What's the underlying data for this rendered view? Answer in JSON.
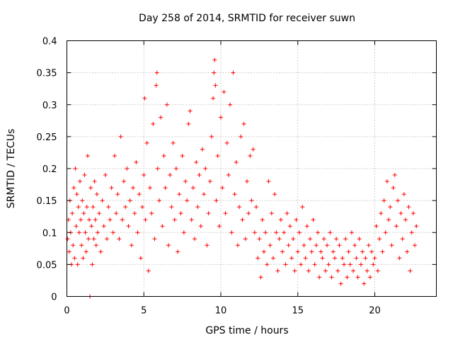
{
  "chart_data": {
    "type": "scatter",
    "title": "Day 258 of 2014, SRMTID for receiver suwn",
    "xlabel": "GPS time / hours",
    "ylabel": "SRMTID / TECUs",
    "xlim": [
      0,
      24
    ],
    "ylim": [
      0,
      0.4
    ],
    "x_ticks": [
      0,
      5,
      10,
      15,
      20
    ],
    "x_tick_labels": [
      "0",
      "5",
      "10",
      "15",
      "20"
    ],
    "y_ticks": [
      0,
      0.05,
      0.1,
      0.15,
      0.2,
      0.25,
      0.3,
      0.35,
      0.4
    ],
    "y_tick_labels": [
      "0",
      "0.05",
      "0.1",
      "0.15",
      "0.2",
      "0.25",
      "0.3",
      "0.35",
      "0.4"
    ],
    "grid": true,
    "marker": "+",
    "color": "#ff0000",
    "series": [
      {
        "name": "SRMTID",
        "points": [
          [
            0.05,
            0.09
          ],
          [
            0.1,
            0.12
          ],
          [
            0.15,
            0.07
          ],
          [
            0.2,
            0.15
          ],
          [
            0.25,
            0.1
          ],
          [
            0.3,
            0.05
          ],
          [
            0.35,
            0.13
          ],
          [
            0.4,
            0.08
          ],
          [
            0.45,
            0.17
          ],
          [
            0.5,
            0.06
          ],
          [
            0.55,
            0.2
          ],
          [
            0.6,
            0.11
          ],
          [
            0.65,
            0.16
          ],
          [
            0.7,
            0.05
          ],
          [
            0.75,
            0.14
          ],
          [
            0.8,
            0.1
          ],
          [
            0.85,
            0.18
          ],
          [
            0.9,
            0.12
          ],
          [
            0.95,
            0.08
          ],
          [
            1.0,
            0.15
          ],
          [
            1.05,
            0.06
          ],
          [
            1.1,
            0.13
          ],
          [
            1.15,
            0.19
          ],
          [
            1.2,
            0.1
          ],
          [
            1.25,
            0.07
          ],
          [
            1.3,
            0.14
          ],
          [
            1.35,
            0.22
          ],
          [
            1.4,
            0.09
          ],
          [
            1.45,
            0.12
          ],
          [
            1.5,
            0.0
          ],
          [
            1.55,
            0.17
          ],
          [
            1.6,
            0.11
          ],
          [
            1.65,
            0.05
          ],
          [
            1.7,
            0.14
          ],
          [
            1.75,
            0.09
          ],
          [
            1.8,
            0.18
          ],
          [
            1.85,
            0.12
          ],
          [
            1.9,
            0.08
          ],
          [
            1.95,
            0.16
          ],
          [
            2.0,
            0.1
          ],
          [
            2.1,
            0.13
          ],
          [
            2.2,
            0.07
          ],
          [
            2.3,
            0.15
          ],
          [
            2.4,
            0.11
          ],
          [
            2.5,
            0.19
          ],
          [
            2.6,
            0.09
          ],
          [
            2.7,
            0.14
          ],
          [
            2.8,
            0.12
          ],
          [
            2.9,
            0.17
          ],
          [
            3.0,
            0.1
          ],
          [
            3.1,
            0.22
          ],
          [
            3.2,
            0.13
          ],
          [
            3.3,
            0.16
          ],
          [
            3.4,
            0.09
          ],
          [
            3.5,
            0.25
          ],
          [
            3.6,
            0.12
          ],
          [
            3.7,
            0.18
          ],
          [
            3.8,
            0.14
          ],
          [
            3.9,
            0.2
          ],
          [
            4.0,
            0.11
          ],
          [
            4.1,
            0.15
          ],
          [
            4.2,
            0.08
          ],
          [
            4.3,
            0.17
          ],
          [
            4.4,
            0.13
          ],
          [
            4.5,
            0.21
          ],
          [
            4.6,
            0.1
          ],
          [
            4.7,
            0.16
          ],
          [
            4.8,
            0.06
          ],
          [
            4.9,
            0.14
          ],
          [
            5.0,
            0.19
          ],
          [
            5.05,
            0.31
          ],
          [
            5.1,
            0.12
          ],
          [
            5.2,
            0.24
          ],
          [
            5.3,
            0.04
          ],
          [
            5.4,
            0.17
          ],
          [
            5.5,
            0.13
          ],
          [
            5.6,
            0.27
          ],
          [
            5.7,
            0.09
          ],
          [
            5.8,
            0.33
          ],
          [
            5.85,
            0.35
          ],
          [
            5.9,
            0.2
          ],
          [
            6.0,
            0.15
          ],
          [
            6.1,
            0.28
          ],
          [
            6.2,
            0.11
          ],
          [
            6.3,
            0.22
          ],
          [
            6.4,
            0.17
          ],
          [
            6.5,
            0.3
          ],
          [
            6.6,
            0.08
          ],
          [
            6.7,
            0.19
          ],
          [
            6.8,
            0.14
          ],
          [
            6.9,
            0.24
          ],
          [
            7.0,
            0.12
          ],
          [
            7.1,
            0.2
          ],
          [
            7.2,
            0.07
          ],
          [
            7.3,
            0.16
          ],
          [
            7.4,
            0.13
          ],
          [
            7.5,
            0.22
          ],
          [
            7.6,
            0.1
          ],
          [
            7.7,
            0.18
          ],
          [
            7.8,
            0.15
          ],
          [
            7.9,
            0.27
          ],
          [
            8.0,
            0.29
          ],
          [
            8.1,
            0.12
          ],
          [
            8.2,
            0.17
          ],
          [
            8.3,
            0.09
          ],
          [
            8.4,
            0.21
          ],
          [
            8.5,
            0.14
          ],
          [
            8.6,
            0.19
          ],
          [
            8.7,
            0.11
          ],
          [
            8.8,
            0.23
          ],
          [
            8.9,
            0.16
          ],
          [
            9.0,
            0.2
          ],
          [
            9.1,
            0.08
          ],
          [
            9.2,
            0.13
          ],
          [
            9.3,
            0.18
          ],
          [
            9.4,
            0.25
          ],
          [
            9.5,
            0.31
          ],
          [
            9.55,
            0.35
          ],
          [
            9.6,
            0.37
          ],
          [
            9.65,
            0.33
          ],
          [
            9.7,
            0.15
          ],
          [
            9.8,
            0.22
          ],
          [
            9.9,
            0.11
          ],
          [
            10.0,
            0.28
          ],
          [
            10.1,
            0.17
          ],
          [
            10.2,
            0.32
          ],
          [
            10.3,
            0.13
          ],
          [
            10.4,
            0.24
          ],
          [
            10.5,
            0.19
          ],
          [
            10.6,
            0.3
          ],
          [
            10.7,
            0.1
          ],
          [
            10.8,
            0.35
          ],
          [
            10.9,
            0.16
          ],
          [
            11.0,
            0.21
          ],
          [
            11.1,
            0.08
          ],
          [
            11.2,
            0.14
          ],
          [
            11.3,
            0.25
          ],
          [
            11.4,
            0.12
          ],
          [
            11.5,
            0.27
          ],
          [
            11.6,
            0.09
          ],
          [
            11.7,
            0.18
          ],
          [
            11.8,
            0.13
          ],
          [
            11.9,
            0.22
          ],
          [
            12.0,
            0.15
          ],
          [
            12.1,
            0.23
          ],
          [
            12.2,
            0.1
          ],
          [
            12.3,
            0.14
          ],
          [
            12.4,
            0.06
          ],
          [
            12.5,
            0.09
          ],
          [
            12.6,
            0.03
          ],
          [
            12.7,
            0.12
          ],
          [
            12.8,
            0.07
          ],
          [
            12.9,
            0.1
          ],
          [
            13.0,
            0.05
          ],
          [
            13.1,
            0.18
          ],
          [
            13.2,
            0.08
          ],
          [
            13.3,
            0.13
          ],
          [
            13.4,
            0.06
          ],
          [
            13.5,
            0.16
          ],
          [
            13.6,
            0.1
          ],
          [
            13.7,
            0.04
          ],
          [
            13.8,
            0.09
          ],
          [
            13.9,
            0.12
          ],
          [
            14.0,
            0.07
          ],
          [
            14.1,
            0.1
          ],
          [
            14.2,
            0.05
          ],
          [
            14.3,
            0.13
          ],
          [
            14.4,
            0.08
          ],
          [
            14.5,
            0.11
          ],
          [
            14.6,
            0.06
          ],
          [
            14.7,
            0.09
          ],
          [
            14.8,
            0.04
          ],
          [
            14.9,
            0.12
          ],
          [
            15.0,
            0.07
          ],
          [
            15.1,
            0.1
          ],
          [
            15.2,
            0.05
          ],
          [
            15.3,
            0.14
          ],
          [
            15.4,
            0.08
          ],
          [
            15.5,
            0.06
          ],
          [
            15.6,
            0.11
          ],
          [
            15.7,
            0.04
          ],
          [
            15.8,
            0.09
          ],
          [
            15.9,
            0.07
          ],
          [
            16.0,
            0.12
          ],
          [
            16.1,
            0.05
          ],
          [
            16.2,
            0.08
          ],
          [
            16.3,
            0.1
          ],
          [
            16.4,
            0.03
          ],
          [
            16.5,
            0.07
          ],
          [
            16.6,
            0.06
          ],
          [
            16.7,
            0.09
          ],
          [
            16.8,
            0.04
          ],
          [
            16.9,
            0.08
          ],
          [
            17.0,
            0.05
          ],
          [
            17.1,
            0.1
          ],
          [
            17.2,
            0.03
          ],
          [
            17.3,
            0.07
          ],
          [
            17.4,
            0.06
          ],
          [
            17.5,
            0.09
          ],
          [
            17.6,
            0.04
          ],
          [
            17.7,
            0.08
          ],
          [
            17.8,
            0.02
          ],
          [
            17.9,
            0.06
          ],
          [
            18.0,
            0.05
          ],
          [
            18.1,
            0.09
          ],
          [
            18.2,
            0.03
          ],
          [
            18.3,
            0.07
          ],
          [
            18.4,
            0.05
          ],
          [
            18.5,
            0.1
          ],
          [
            18.6,
            0.04
          ],
          [
            18.7,
            0.08
          ],
          [
            18.8,
            0.06
          ],
          [
            18.9,
            0.03
          ],
          [
            19.0,
            0.09
          ],
          [
            19.1,
            0.05
          ],
          [
            19.2,
            0.07
          ],
          [
            19.3,
            0.02
          ],
          [
            19.4,
            0.06
          ],
          [
            19.5,
            0.04
          ],
          [
            19.6,
            0.08
          ],
          [
            19.7,
            0.03
          ],
          [
            19.8,
            0.07
          ],
          [
            19.9,
            0.05
          ],
          [
            20.0,
            0.06
          ],
          [
            20.1,
            0.11
          ],
          [
            20.2,
            0.04
          ],
          [
            20.3,
            0.09
          ],
          [
            20.4,
            0.13
          ],
          [
            20.5,
            0.07
          ],
          [
            20.6,
            0.15
          ],
          [
            20.7,
            0.1
          ],
          [
            20.8,
            0.18
          ],
          [
            20.9,
            0.12
          ],
          [
            21.0,
            0.14
          ],
          [
            21.1,
            0.08
          ],
          [
            21.2,
            0.17
          ],
          [
            21.3,
            0.19
          ],
          [
            21.4,
            0.11
          ],
          [
            21.5,
            0.15
          ],
          [
            21.6,
            0.06
          ],
          [
            21.7,
            0.13
          ],
          [
            21.8,
            0.09
          ],
          [
            21.9,
            0.16
          ],
          [
            22.0,
            0.12
          ],
          [
            22.1,
            0.07
          ],
          [
            22.2,
            0.14
          ],
          [
            22.3,
            0.04
          ],
          [
            22.4,
            0.1
          ],
          [
            22.5,
            0.13
          ],
          [
            22.6,
            0.08
          ],
          [
            22.7,
            0.11
          ]
        ]
      }
    ]
  }
}
